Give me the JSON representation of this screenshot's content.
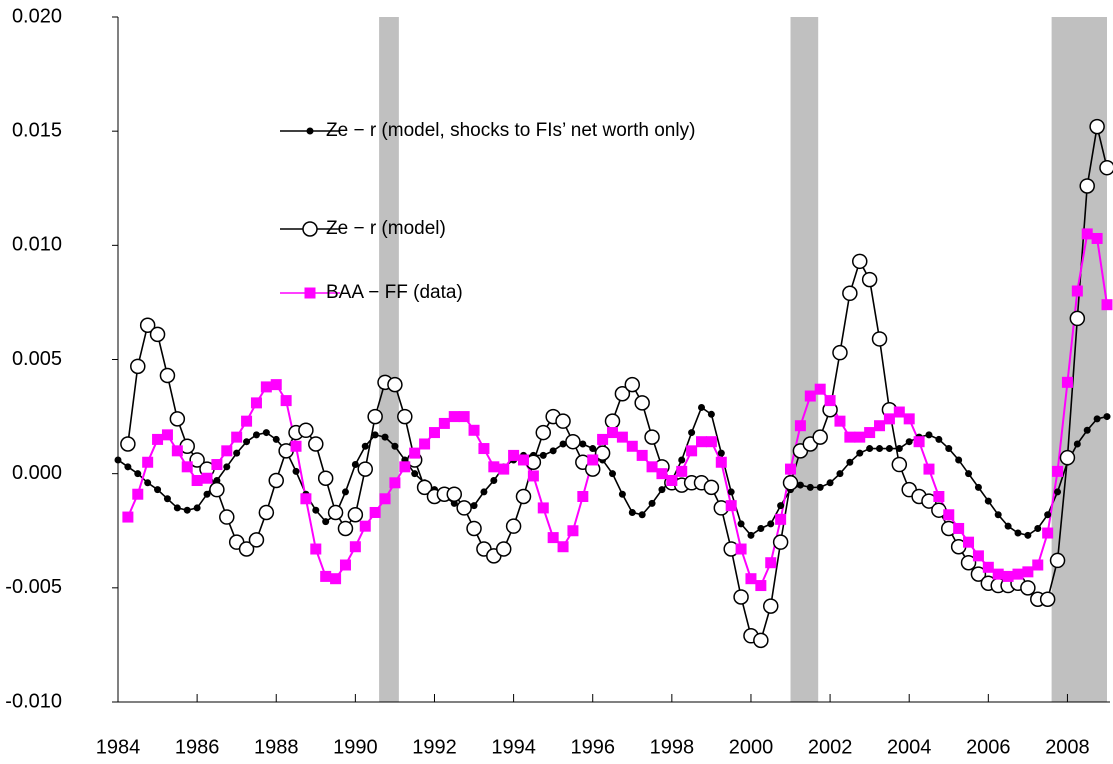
{
  "chart_data": {
    "type": "line",
    "x": [
      1984,
      1984.25,
      1984.5,
      1984.75,
      1985,
      1985.25,
      1985.5,
      1985.75,
      1986,
      1986.25,
      1986.5,
      1986.75,
      1987,
      1987.25,
      1987.5,
      1987.75,
      1988,
      1988.25,
      1988.5,
      1988.75,
      1989,
      1989.25,
      1989.5,
      1989.75,
      1990,
      1990.25,
      1990.5,
      1990.75,
      1991,
      1991.25,
      1991.5,
      1991.75,
      1992,
      1992.25,
      1992.5,
      1992.75,
      1993,
      1993.25,
      1993.5,
      1993.75,
      1994,
      1994.25,
      1994.5,
      1994.75,
      1995,
      1995.25,
      1995.5,
      1995.75,
      1996,
      1996.25,
      1996.5,
      1996.75,
      1997,
      1997.25,
      1997.5,
      1997.75,
      1998,
      1998.25,
      1998.5,
      1998.75,
      1999,
      1999.25,
      1999.5,
      1999.75,
      2000,
      2000.25,
      2000.5,
      2000.75,
      2001,
      2001.25,
      2001.5,
      2001.75,
      2002,
      2002.25,
      2002.5,
      2002.75,
      2003,
      2003.25,
      2003.5,
      2003.75,
      2004,
      2004.25,
      2004.5,
      2004.75,
      2005,
      2005.25,
      2005.5,
      2005.75,
      2006,
      2006.25,
      2006.5,
      2006.75,
      2007,
      2007.25,
      2007.5,
      2007.75,
      2008,
      2008.25,
      2008.5,
      2008.75,
      2009
    ],
    "series": [
      {
        "name": "Ze − r (model, shocks to FIs’ net worth only)",
        "color": "#000000",
        "marker": "dot",
        "values": [
          0.0006,
          0.0003,
          0.0,
          -0.0004,
          -0.0007,
          -0.0011,
          -0.0015,
          -0.0016,
          -0.0015,
          -0.0009,
          -0.0003,
          0.0003,
          0.0009,
          0.0014,
          0.0017,
          0.0018,
          0.0015,
          0.001,
          0.0001,
          -0.0009,
          -0.0016,
          -0.0021,
          -0.0018,
          -0.0008,
          0.0004,
          0.0012,
          0.0017,
          0.0016,
          0.0012,
          0.0006,
          0.0,
          -0.0004,
          -0.0007,
          -0.001,
          -0.0013,
          -0.0015,
          -0.0014,
          -0.0008,
          -0.0003,
          0.0003,
          0.0006,
          0.0008,
          0.0008,
          0.0008,
          0.001,
          0.0013,
          0.0014,
          0.0013,
          0.0011,
          0.0006,
          0.0,
          -0.0009,
          -0.0017,
          -0.0018,
          -0.0013,
          -0.0007,
          -0.0003,
          0.0006,
          0.0018,
          0.0029,
          0.0026,
          0.0009,
          -0.0008,
          -0.0022,
          -0.0027,
          -0.0024,
          -0.0022,
          -0.0014,
          -0.0007,
          -0.0005,
          -0.0006,
          -0.0006,
          -0.0004,
          0.0,
          0.0005,
          0.0009,
          0.0011,
          0.0011,
          0.0011,
          0.0011,
          0.0014,
          0.0016,
          0.0017,
          0.0015,
          0.0011,
          0.0006,
          0.0,
          -0.0006,
          -0.0012,
          -0.0018,
          -0.0023,
          -0.0026,
          -0.0027,
          -0.0024,
          -0.0018,
          -0.0008,
          0.0005,
          0.0013,
          0.0019,
          0.0024,
          0.0025
        ]
      },
      {
        "name": "Ze − r (model)",
        "color": "#000000",
        "marker": "circle",
        "values": [
          null,
          0.0013,
          0.0047,
          0.0065,
          0.0061,
          0.0043,
          0.0024,
          0.0012,
          0.0006,
          0.0002,
          -0.0007,
          -0.0019,
          -0.003,
          -0.0033,
          -0.0029,
          -0.0017,
          -0.0003,
          0.001,
          0.0018,
          0.0019,
          0.0013,
          -0.0002,
          -0.0017,
          -0.0024,
          -0.0018,
          0.0002,
          0.0025,
          0.004,
          0.0039,
          0.0025,
          0.0006,
          -0.0006,
          -0.001,
          -0.0009,
          -0.0009,
          -0.0015,
          -0.0024,
          -0.0033,
          -0.0036,
          -0.0033,
          -0.0023,
          -0.001,
          0.0005,
          0.0018,
          0.0025,
          0.0023,
          0.0014,
          0.0005,
          0.0002,
          0.0009,
          0.0023,
          0.0035,
          0.0039,
          0.0031,
          0.0016,
          0.0003,
          -0.0004,
          -0.0005,
          -0.0004,
          -0.0004,
          -0.0006,
          -0.0015,
          -0.0033,
          -0.0054,
          -0.0071,
          -0.0073,
          -0.0058,
          -0.003,
          -0.0004,
          0.001,
          0.0013,
          0.0016,
          0.0028,
          0.0053,
          0.0079,
          0.0093,
          0.0085,
          0.0059,
          0.0028,
          0.0004,
          -0.0007,
          -0.001,
          -0.0012,
          -0.0016,
          -0.0024,
          -0.0032,
          -0.0039,
          -0.0044,
          -0.0048,
          -0.0049,
          -0.0049,
          -0.0048,
          -0.005,
          -0.0055,
          -0.0055,
          -0.0038,
          0.0007,
          0.0068,
          0.0126,
          0.0152,
          0.0134
        ]
      },
      {
        "name": "BAA − FF (data)",
        "color": "#ff00ff",
        "marker": "square",
        "values": [
          null,
          -0.0019,
          -0.0009,
          0.0005,
          0.0015,
          0.0017,
          0.001,
          0.0003,
          -0.0003,
          -0.0002,
          0.0004,
          0.001,
          0.0016,
          0.0023,
          0.0031,
          0.0038,
          0.0039,
          0.0032,
          0.0012,
          -0.0011,
          -0.0033,
          -0.0045,
          -0.0046,
          -0.004,
          -0.0032,
          -0.0023,
          -0.0017,
          -0.0011,
          -0.0004,
          0.0003,
          0.0009,
          0.0013,
          0.0018,
          0.0022,
          0.0025,
          0.0025,
          0.0019,
          0.0011,
          0.0003,
          0.0002,
          0.0008,
          0.0006,
          -0.0001,
          -0.0015,
          -0.0028,
          -0.0032,
          -0.0025,
          -0.001,
          0.0006,
          0.0015,
          0.0018,
          0.0016,
          0.0012,
          0.0008,
          0.0003,
          0.0,
          -0.0003,
          0.0001,
          0.001,
          0.0014,
          0.0014,
          0.0005,
          -0.0014,
          -0.0033,
          -0.0046,
          -0.0049,
          -0.0039,
          -0.002,
          0.0002,
          0.0021,
          0.0034,
          0.0037,
          0.0032,
          0.0023,
          0.0016,
          0.0016,
          0.0018,
          0.0021,
          0.0024,
          0.0027,
          0.0024,
          0.0014,
          0.0002,
          -0.001,
          -0.0018,
          -0.0024,
          -0.003,
          -0.0036,
          -0.0041,
          -0.0044,
          -0.0045,
          -0.0044,
          -0.0043,
          -0.004,
          -0.0026,
          0.0001,
          0.004,
          0.008,
          0.0105,
          0.0103,
          0.0074
        ]
      }
    ],
    "shaded_periods": [
      [
        1990.6,
        1991.1
      ],
      [
        2001.0,
        2001.7
      ],
      [
        2007.6,
        2009
      ]
    ],
    "xlim": [
      1984,
      2009
    ],
    "xticks": [
      1984,
      1986,
      1988,
      1990,
      1992,
      1994,
      1996,
      1998,
      2000,
      2002,
      2004,
      2006,
      2008
    ],
    "ylim": [
      -0.01,
      0.02
    ],
    "yticks": [
      {
        "value": 0.02,
        "label": "0.020"
      },
      {
        "value": 0.015,
        "label": "0.015"
      },
      {
        "value": 0.01,
        "label": "0.010"
      },
      {
        "value": 0.005,
        "label": "0.005"
      },
      {
        "value": 0,
        "label": "0.000"
      },
      {
        "value": -0.005,
        "label": "-0.005"
      },
      {
        "value": -0.01,
        "label": "-0.010"
      }
    ],
    "shade_color": "#c0c0c0",
    "grid": false
  }
}
